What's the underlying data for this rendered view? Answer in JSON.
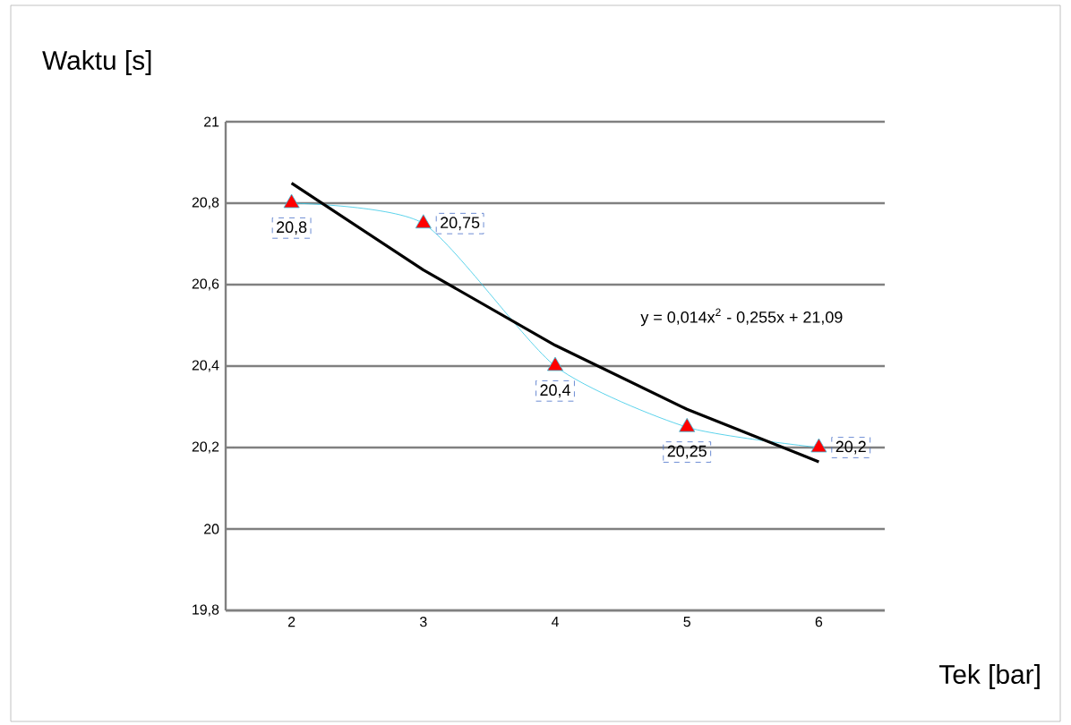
{
  "chart_data": {
    "type": "line",
    "ylabel": "Waktu [s]",
    "xlabel": "Tek [bar]",
    "categories": [
      "2",
      "3",
      "4",
      "5",
      "6"
    ],
    "series": [
      {
        "color": "#ff0000",
        "marker": "triangle",
        "values": [
          20.8,
          20.75,
          20.4,
          20.25,
          20.2
        ],
        "value_labels": [
          "20,8",
          "20,75",
          "20,4",
          "20,25",
          "20,2"
        ]
      },
      {
        "color": "#000000",
        "marker": "none",
        "values": [
          20.849,
          20.636,
          20.451,
          20.294,
          20.165
        ]
      }
    ],
    "ylim": [
      19.8,
      21
    ],
    "yticks": [
      {
        "value": 19.8,
        "label": "19,8"
      },
      20,
      {
        "value": 20.2,
        "label": "20,2"
      },
      {
        "value": 20.4,
        "label": "20,4"
      },
      {
        "value": 20.6,
        "label": "20,6"
      },
      {
        "value": 20.8,
        "label": "20,8"
      },
      21
    ],
    "grid": "y",
    "annotations": [
      "y = 0,014x$^{2}$ - 0,255x + 21,09"
    ]
  }
}
